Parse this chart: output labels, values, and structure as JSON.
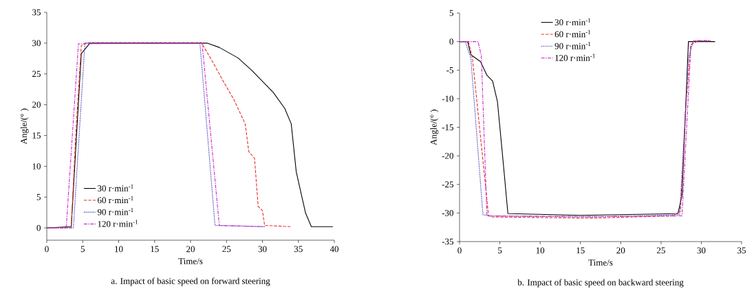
{
  "chart_data": [
    {
      "type": "line",
      "xlabel": "Time/s",
      "ylabel": "Angle/(° )",
      "annotations": [
        "a. Impact of basic speed on forward steering"
      ],
      "xlim": [
        0,
        40
      ],
      "ylim": [
        -2,
        35
      ],
      "xticks": [
        0,
        5,
        10,
        15,
        20,
        25,
        30,
        35,
        40
      ],
      "yticks": [
        0,
        5,
        10,
        15,
        20,
        25,
        30,
        35
      ],
      "legend": "bottom left",
      "series": [
        {
          "name": "30 r·min$^{-1}$",
          "color": "#000000",
          "line_style": "solid",
          "x": [
            0,
            3.4,
            4.8,
            6.0,
            22.3,
            24.0,
            26.6,
            28.5,
            31.5,
            33.1,
            34.0,
            34.7,
            36.0,
            36.8,
            39.8
          ],
          "values": [
            0,
            0.2,
            28.3,
            30.0,
            30.0,
            29.3,
            27.6,
            25.6,
            22.0,
            19.4,
            16.9,
            9.1,
            2.4,
            0.2,
            0.2
          ]
        },
        {
          "name": "60 r·min$^{-1}$",
          "color": "#e8302a",
          "line_style": "dashed",
          "x": [
            0,
            3.4,
            4.0,
            4.8,
            5.6,
            21.5,
            23.1,
            24.7,
            26.0,
            27.6,
            28.1,
            28.9,
            29.4,
            30.0,
            30.3,
            33.9
          ],
          "values": [
            0,
            0,
            14.6,
            29.6,
            30.1,
            30.1,
            26.9,
            23.5,
            20.9,
            16.9,
            12.4,
            11.3,
            3.5,
            2.8,
            0.4,
            0.2
          ]
        },
        {
          "name": "90 r·min$^{-1}$",
          "color": "#4848c0",
          "line_style": "dotted",
          "x": [
            0,
            3.7,
            5.3,
            21.3,
            23.4,
            30.3
          ],
          "values": [
            0,
            0,
            30.0,
            30.0,
            0.4,
            0.2
          ]
        },
        {
          "name": "120 r·min$^{-1}$",
          "color": "#cc22cc",
          "line_style": "dashdot",
          "x": [
            0,
            2.7,
            4.4,
            21.6,
            24.0,
            30.3
          ],
          "values": [
            0,
            0,
            29.9,
            30.0,
            0.4,
            0.2
          ]
        }
      ]
    },
    {
      "type": "line",
      "xlabel": "Time/s",
      "ylabel": "Angle/(° )",
      "annotations": [
        "b. Impact of basic speed on backward steering"
      ],
      "xlim": [
        0,
        35
      ],
      "ylim": [
        -35,
        5
      ],
      "xticks": [
        0,
        5,
        10,
        15,
        20,
        25,
        30,
        35
      ],
      "yticks": [
        -35,
        -30,
        -25,
        -20,
        -15,
        -10,
        -5,
        0,
        5
      ],
      "legend": "top",
      "series": [
        {
          "name": "30 r·min$^{-1}$",
          "color": "#000000",
          "line_style": "solid",
          "x": [
            0,
            1.0,
            1.4,
            2.6,
            3.4,
            4.1,
            4.7,
            5.4,
            6.0,
            15.0,
            27.1,
            27.6,
            28.4,
            31.7
          ],
          "values": [
            0,
            0,
            -2.3,
            -3.5,
            -5.9,
            -6.9,
            -10.5,
            -20.9,
            -30.1,
            -30.4,
            -30.1,
            -26.9,
            0,
            0
          ]
        },
        {
          "name": "60 r·min$^{-1}$",
          "color": "#e8302a",
          "line_style": "dashed",
          "x": [
            0,
            1.1,
            1.6,
            3.6,
            4.1,
            16.4,
            26.4,
            27.4,
            28.1,
            28.7,
            29.6,
            31.3
          ],
          "values": [
            0,
            0,
            -2.9,
            -30.5,
            -30.7,
            -30.9,
            -30.5,
            -29.7,
            -10.9,
            -0.5,
            0.1,
            0.1
          ]
        },
        {
          "name": "90 r·min$^{-1}$",
          "color": "#4848c0",
          "line_style": "dotted",
          "x": [
            0,
            0.7,
            1.4,
            2.9,
            3.9,
            16.4,
            27.3,
            28.4,
            29.0,
            31.0
          ],
          "values": [
            0,
            0,
            -2.9,
            -30.3,
            -30.5,
            -30.7,
            -30.3,
            -2.9,
            0.1,
            0.1
          ]
        },
        {
          "name": "120 r·min$^{-1}$",
          "color": "#cc22cc",
          "line_style": "dashdot",
          "x": [
            0,
            2.3,
            2.7,
            3.4,
            16.4,
            27.6,
            28.7,
            29.1,
            31.0
          ],
          "values": [
            0,
            0,
            -2.5,
            -30.5,
            -30.6,
            -30.5,
            -0.9,
            0.2,
            0.2
          ]
        }
      ]
    }
  ]
}
